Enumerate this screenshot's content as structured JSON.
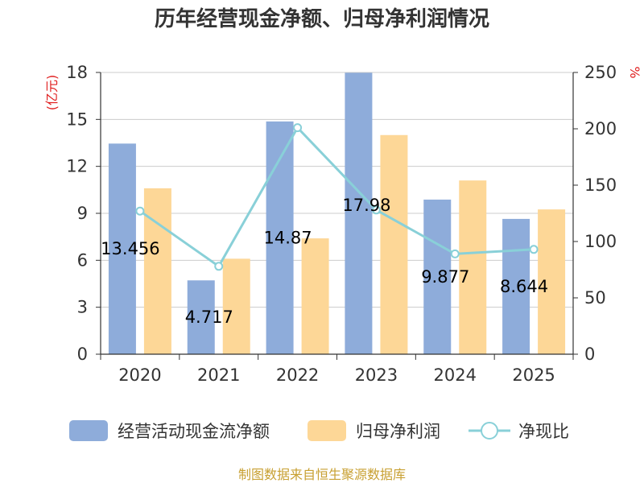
{
  "title": "历年经营现金净额、归母净利润情况",
  "source": "制图数据来自恒生聚源数据库",
  "colors": {
    "cash": "#8eacda",
    "profit": "#fdd797",
    "ratio": "#89d0d8",
    "axis": "#333333",
    "grid": "#cccccc",
    "unit": "#e02020"
  },
  "chart_data": {
    "type": "bar",
    "categories": [
      "2020",
      "2021",
      "2022",
      "2023",
      "2024",
      "2025"
    ],
    "series": [
      {
        "name": "经营活动现金流净额",
        "type": "bar",
        "axis": "left",
        "values": [
          13.456,
          4.717,
          14.87,
          17.98,
          9.877,
          8.644
        ],
        "labels": [
          "13.456",
          "4.717",
          "14.87",
          "17.98",
          "9.877",
          "8.644"
        ]
      },
      {
        "name": "归母净利润",
        "type": "bar",
        "axis": "left",
        "values": [
          10.6,
          6.1,
          7.4,
          14.0,
          11.1,
          9.25
        ]
      },
      {
        "name": "净现比",
        "type": "line",
        "axis": "right",
        "values": [
          127,
          78,
          201,
          128,
          89,
          93
        ]
      }
    ],
    "y_left": {
      "label": "(亿元)",
      "ylim": [
        0,
        18
      ],
      "ticks": [
        0,
        3,
        6,
        9,
        12,
        15,
        18
      ]
    },
    "y_right": {
      "label": "%",
      "ylim": [
        0,
        250
      ],
      "ticks": [
        0,
        50,
        100,
        150,
        200,
        250
      ]
    },
    "grid": true,
    "legend": "bottom"
  }
}
